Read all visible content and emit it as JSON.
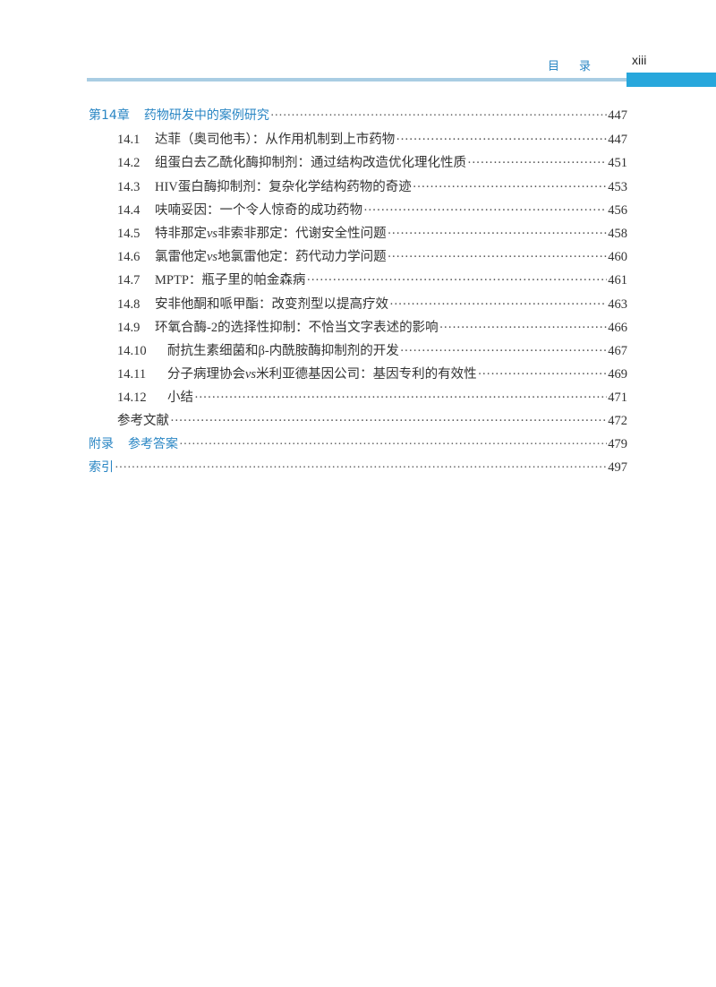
{
  "header": {
    "title": "目录",
    "page_number": "xiii",
    "accent_color": "#27a7dc"
  },
  "toc": {
    "chapter": {
      "number": "第14章",
      "title": "药物研发中的案例研究",
      "page": "447"
    },
    "sections": [
      {
        "number": "14.1",
        "title": "达菲（奥司他韦）：从作用机制到上市药物",
        "page": "447"
      },
      {
        "number": "14.2",
        "title": "组蛋白去乙酰化酶抑制剂：通过结构改造优化理化性质",
        "page": "451"
      },
      {
        "number": "14.3",
        "title": "HIV蛋白酶抑制剂：复杂化学结构药物的奇迹",
        "page": "453"
      },
      {
        "number": "14.4",
        "title": "呋喃妥因：一个令人惊奇的成功药物",
        "page": "456"
      },
      {
        "number": "14.5",
        "title_a": "特非那定",
        "vs": "vs",
        "title_b": "非索非那定：代谢安全性问题",
        "page": "458"
      },
      {
        "number": "14.6",
        "title_a": "氯雷他定",
        "vs": "vs",
        "title_b": "地氯雷他定：药代动力学问题",
        "page": "460"
      },
      {
        "number": "14.7",
        "title": "MPTP：瓶子里的帕金森病",
        "page": "461"
      },
      {
        "number": "14.8",
        "title": "安非他酮和哌甲酯：改变剂型以提高疗效",
        "page": "463"
      },
      {
        "number": "14.9",
        "title": "环氧合酶-2的选择性抑制：不恰当文字表述的影响",
        "page": "466"
      },
      {
        "number": "14.10",
        "title": "耐抗生素细菌和β-内酰胺酶抑制剂的开发",
        "page": "467"
      },
      {
        "number": "14.11",
        "title_a": "分子病理协会",
        "vs": "vs",
        "title_b": "米利亚德基因公司：基因专利的有效性",
        "page": "469"
      },
      {
        "number": "14.12",
        "title": "小结",
        "page": "471"
      }
    ],
    "references": {
      "title": "参考文献",
      "page": "472"
    },
    "appendix": {
      "number": "附录",
      "title": "参考答案",
      "page": "479"
    },
    "index": {
      "title": "索引",
      "page": "497"
    }
  }
}
